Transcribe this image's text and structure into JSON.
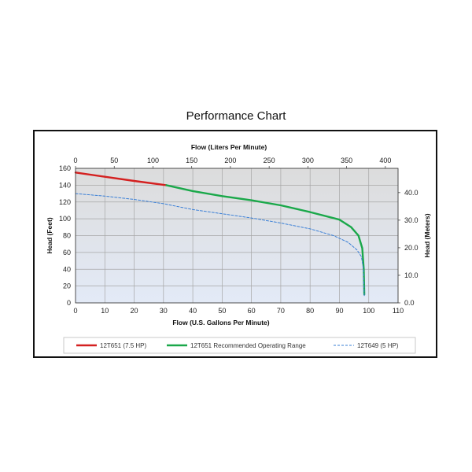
{
  "page": {
    "title": "Performance Chart"
  },
  "chart_data": {
    "type": "line",
    "title": "Performance Chart",
    "xlabel": "Flow (U.S. Gallons Per Minute)",
    "ylabel": "Head (Feet)",
    "x2label": "Flow (Liters Per Minute)",
    "y2label": "Head (Meters)",
    "xlim": [
      0,
      110
    ],
    "ylim": [
      0,
      160
    ],
    "x2lim": [
      0,
      416.4
    ],
    "y2lim": [
      0,
      48.8
    ],
    "xticks": [
      "0",
      "10",
      "20",
      "30",
      "40",
      "50",
      "60",
      "70",
      "80",
      "90",
      "100",
      "110"
    ],
    "yticks": [
      "0",
      "20",
      "40",
      "60",
      "80",
      "100",
      "120",
      "140",
      "160"
    ],
    "x2ticks": [
      "0",
      "50",
      "100",
      "150",
      "200",
      "250",
      "300",
      "350",
      "400"
    ],
    "y2ticks": [
      "0.0",
      "10.0",
      "20.0",
      "30.0",
      "40.0"
    ],
    "grid": true,
    "legend_position": "bottom",
    "series": [
      {
        "name": "12T651 (7.5 HP)",
        "color": "#d42020",
        "style": "solid",
        "x": [
          0,
          10,
          20,
          31
        ],
        "y": [
          155,
          150,
          145,
          140
        ]
      },
      {
        "name": "12T651 Recommended Operating Range",
        "color": "#1aa84a",
        "style": "solid",
        "x": [
          31,
          40,
          50,
          60,
          70,
          80,
          90,
          94,
          96.5,
          97.8,
          98.3,
          98.5
        ],
        "y": [
          140,
          133,
          127,
          122,
          116,
          108,
          99,
          90,
          80,
          65,
          40,
          10
        ]
      },
      {
        "name": "12T649 (5 HP)",
        "color": "#3a7fd6",
        "style": "dashed",
        "x": [
          0,
          10,
          20,
          30,
          40,
          50,
          60,
          70,
          80,
          88,
          93,
          96,
          97.5,
          98.2,
          98.5
        ],
        "y": [
          130,
          127,
          123,
          118,
          111,
          106,
          101,
          95,
          88,
          80,
          72,
          63,
          55,
          40,
          8
        ]
      }
    ],
    "colors": {
      "plot_bg_top": "#dcdcdc",
      "plot_bg_bottom": "#e3eaf7",
      "grid": "#a6a6a6"
    }
  }
}
